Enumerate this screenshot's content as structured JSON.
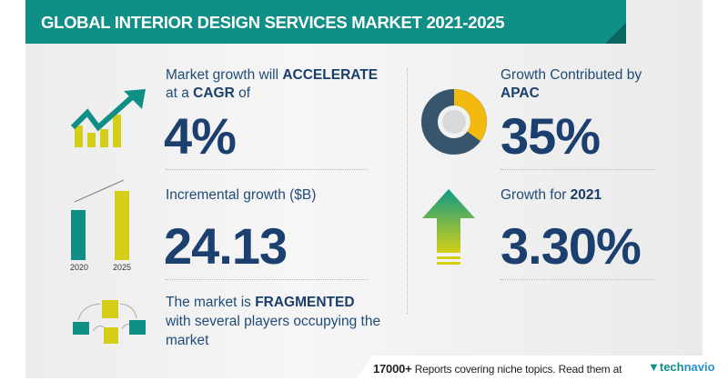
{
  "header": {
    "title": "GLOBAL INTERIOR DESIGN SERVICES MARKET 2021-2025"
  },
  "cagr": {
    "text_pre": "Market growth will ",
    "text_bold": "ACCELERATE",
    "line2_pre": "at a ",
    "line2_bold": "CAGR",
    "line2_post": " of",
    "value": "4%"
  },
  "region": {
    "text": "Growth Contributed by",
    "region": "APAC",
    "value": "35%",
    "share": 0.35
  },
  "incremental": {
    "text": "Incremental growth ($B)",
    "value": "24.13",
    "years": [
      "2020",
      "2025"
    ]
  },
  "yoy": {
    "text_pre": "Growth for ",
    "year": "2021",
    "value": "3.30%"
  },
  "market": {
    "text_pre": "The market is ",
    "text_bold": "FRAGMENTED",
    "line2": "with several players occupying the",
    "line3": "market"
  },
  "footer": {
    "count": "17000+",
    "text": "Reports covering niche topics. Read them at",
    "logo_a": "tech",
    "logo_b": "navio"
  },
  "colors": {
    "teal": "#0f8f86",
    "navy": "#1b3f6e",
    "yellow": "#d4cf16",
    "gold": "#f2b90f",
    "slate": "#37566e"
  }
}
